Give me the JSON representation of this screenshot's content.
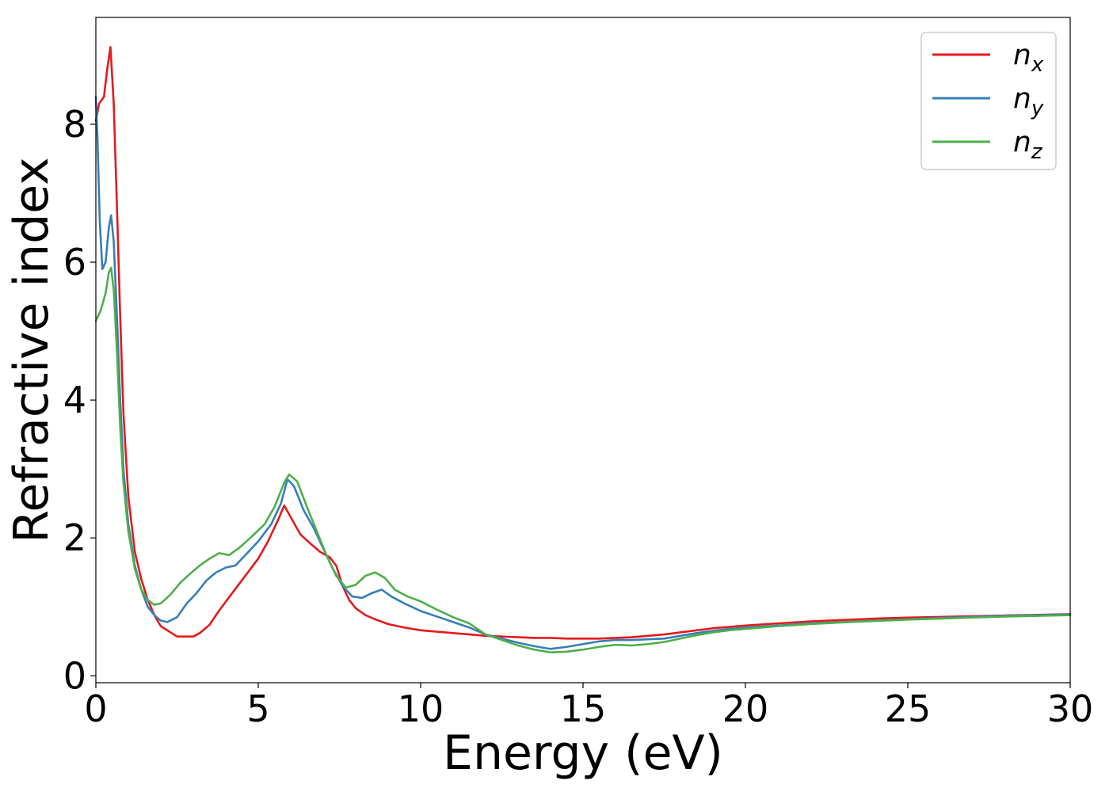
{
  "chart_data": {
    "type": "line",
    "title": "",
    "xlabel": "Energy (eV)",
    "ylabel": "Refractive index",
    "xlim": [
      0,
      30
    ],
    "ylim": [
      -0.1,
      9.55
    ],
    "xticks": [
      0,
      5,
      10,
      15,
      20,
      25,
      30
    ],
    "yticks": [
      0,
      2,
      4,
      6,
      8
    ],
    "grid": false,
    "legend_position": "top-right",
    "series": [
      {
        "name": "n_x",
        "label_main": "n",
        "label_sub": "x",
        "color": "#e41a1c",
        "points": [
          [
            0.0,
            8.05
          ],
          [
            0.1,
            8.3
          ],
          [
            0.25,
            8.4
          ],
          [
            0.35,
            8.8
          ],
          [
            0.45,
            9.12
          ],
          [
            0.55,
            8.3
          ],
          [
            0.65,
            6.8
          ],
          [
            0.75,
            5.2
          ],
          [
            0.85,
            3.8
          ],
          [
            1.0,
            2.6
          ],
          [
            1.2,
            1.8
          ],
          [
            1.4,
            1.4
          ],
          [
            1.6,
            1.1
          ],
          [
            1.8,
            0.88
          ],
          [
            2.0,
            0.72
          ],
          [
            2.3,
            0.63
          ],
          [
            2.5,
            0.57
          ],
          [
            2.8,
            0.57
          ],
          [
            3.0,
            0.57
          ],
          [
            3.2,
            0.62
          ],
          [
            3.5,
            0.74
          ],
          [
            3.8,
            0.95
          ],
          [
            4.2,
            1.2
          ],
          [
            4.6,
            1.45
          ],
          [
            5.0,
            1.7
          ],
          [
            5.3,
            1.95
          ],
          [
            5.6,
            2.25
          ],
          [
            5.8,
            2.47
          ],
          [
            6.0,
            2.3
          ],
          [
            6.3,
            2.05
          ],
          [
            6.6,
            1.92
          ],
          [
            6.9,
            1.8
          ],
          [
            7.2,
            1.72
          ],
          [
            7.4,
            1.6
          ],
          [
            7.6,
            1.3
          ],
          [
            7.8,
            1.1
          ],
          [
            8.0,
            0.98
          ],
          [
            8.3,
            0.88
          ],
          [
            8.6,
            0.82
          ],
          [
            9.0,
            0.75
          ],
          [
            9.5,
            0.7
          ],
          [
            10.0,
            0.66
          ],
          [
            10.5,
            0.64
          ],
          [
            11.0,
            0.62
          ],
          [
            11.5,
            0.6
          ],
          [
            12.0,
            0.58
          ],
          [
            12.5,
            0.57
          ],
          [
            13.0,
            0.56
          ],
          [
            13.5,
            0.55
          ],
          [
            14.0,
            0.55
          ],
          [
            14.5,
            0.54
          ],
          [
            15.0,
            0.54
          ],
          [
            15.5,
            0.54
          ],
          [
            16.0,
            0.55
          ],
          [
            16.5,
            0.56
          ],
          [
            17.0,
            0.58
          ],
          [
            17.5,
            0.6
          ],
          [
            18.0,
            0.63
          ],
          [
            18.5,
            0.66
          ],
          [
            19.0,
            0.69
          ],
          [
            19.5,
            0.71
          ],
          [
            20.0,
            0.73
          ],
          [
            21.0,
            0.76
          ],
          [
            22.0,
            0.79
          ],
          [
            23.0,
            0.81
          ],
          [
            24.0,
            0.83
          ],
          [
            25.0,
            0.845
          ],
          [
            26.0,
            0.855
          ],
          [
            27.0,
            0.865
          ],
          [
            28.0,
            0.875
          ],
          [
            29.0,
            0.885
          ],
          [
            30.0,
            0.895
          ]
        ]
      },
      {
        "name": "n_y",
        "label_main": "n",
        "label_sub": "y",
        "color": "#377eb8",
        "points": [
          [
            0.0,
            8.4
          ],
          [
            0.05,
            7.8
          ],
          [
            0.12,
            6.6
          ],
          [
            0.2,
            5.9
          ],
          [
            0.3,
            6.0
          ],
          [
            0.4,
            6.5
          ],
          [
            0.47,
            6.68
          ],
          [
            0.55,
            6.3
          ],
          [
            0.65,
            5.2
          ],
          [
            0.75,
            4.0
          ],
          [
            0.85,
            3.0
          ],
          [
            1.0,
            2.2
          ],
          [
            1.2,
            1.6
          ],
          [
            1.4,
            1.25
          ],
          [
            1.6,
            1.0
          ],
          [
            1.8,
            0.88
          ],
          [
            2.0,
            0.8
          ],
          [
            2.2,
            0.78
          ],
          [
            2.5,
            0.85
          ],
          [
            2.8,
            1.05
          ],
          [
            3.1,
            1.2
          ],
          [
            3.4,
            1.38
          ],
          [
            3.7,
            1.5
          ],
          [
            4.0,
            1.57
          ],
          [
            4.3,
            1.6
          ],
          [
            4.6,
            1.75
          ],
          [
            5.0,
            1.95
          ],
          [
            5.4,
            2.2
          ],
          [
            5.7,
            2.5
          ],
          [
            5.9,
            2.85
          ],
          [
            6.1,
            2.75
          ],
          [
            6.4,
            2.4
          ],
          [
            6.7,
            2.15
          ],
          [
            7.0,
            1.85
          ],
          [
            7.3,
            1.55
          ],
          [
            7.6,
            1.3
          ],
          [
            7.9,
            1.15
          ],
          [
            8.2,
            1.13
          ],
          [
            8.5,
            1.2
          ],
          [
            8.8,
            1.25
          ],
          [
            9.1,
            1.15
          ],
          [
            9.5,
            1.05
          ],
          [
            10.0,
            0.94
          ],
          [
            10.5,
            0.86
          ],
          [
            11.0,
            0.78
          ],
          [
            11.5,
            0.7
          ],
          [
            12.0,
            0.6
          ],
          [
            12.5,
            0.54
          ],
          [
            13.0,
            0.48
          ],
          [
            13.5,
            0.43
          ],
          [
            14.0,
            0.39
          ],
          [
            14.5,
            0.42
          ],
          [
            15.0,
            0.46
          ],
          [
            15.5,
            0.5
          ],
          [
            16.0,
            0.52
          ],
          [
            16.5,
            0.52
          ],
          [
            17.0,
            0.53
          ],
          [
            17.5,
            0.54
          ],
          [
            18.0,
            0.58
          ],
          [
            18.5,
            0.62
          ],
          [
            19.0,
            0.65
          ],
          [
            19.5,
            0.68
          ],
          [
            20.0,
            0.7
          ],
          [
            21.0,
            0.73
          ],
          [
            22.0,
            0.76
          ],
          [
            23.0,
            0.78
          ],
          [
            24.0,
            0.8
          ],
          [
            25.0,
            0.82
          ],
          [
            26.0,
            0.84
          ],
          [
            27.0,
            0.855
          ],
          [
            28.0,
            0.87
          ],
          [
            29.0,
            0.88
          ],
          [
            30.0,
            0.89
          ]
        ]
      },
      {
        "name": "n_z",
        "label_main": "n",
        "label_sub": "z",
        "color": "#4daf4a",
        "points": [
          [
            0.0,
            5.15
          ],
          [
            0.15,
            5.3
          ],
          [
            0.3,
            5.55
          ],
          [
            0.4,
            5.85
          ],
          [
            0.47,
            5.92
          ],
          [
            0.55,
            5.6
          ],
          [
            0.65,
            4.7
          ],
          [
            0.75,
            3.6
          ],
          [
            0.85,
            2.8
          ],
          [
            1.0,
            2.1
          ],
          [
            1.2,
            1.55
          ],
          [
            1.4,
            1.25
          ],
          [
            1.6,
            1.1
          ],
          [
            1.8,
            1.03
          ],
          [
            2.0,
            1.05
          ],
          [
            2.3,
            1.18
          ],
          [
            2.6,
            1.35
          ],
          [
            2.9,
            1.48
          ],
          [
            3.2,
            1.6
          ],
          [
            3.5,
            1.7
          ],
          [
            3.8,
            1.78
          ],
          [
            4.1,
            1.75
          ],
          [
            4.4,
            1.85
          ],
          [
            4.8,
            2.02
          ],
          [
            5.2,
            2.2
          ],
          [
            5.5,
            2.45
          ],
          [
            5.8,
            2.8
          ],
          [
            5.95,
            2.92
          ],
          [
            6.2,
            2.82
          ],
          [
            6.5,
            2.45
          ],
          [
            6.8,
            2.1
          ],
          [
            7.1,
            1.75
          ],
          [
            7.4,
            1.45
          ],
          [
            7.7,
            1.28
          ],
          [
            8.0,
            1.32
          ],
          [
            8.3,
            1.45
          ],
          [
            8.6,
            1.5
          ],
          [
            8.9,
            1.42
          ],
          [
            9.2,
            1.25
          ],
          [
            9.6,
            1.15
          ],
          [
            10.0,
            1.08
          ],
          [
            10.5,
            0.96
          ],
          [
            11.0,
            0.85
          ],
          [
            11.5,
            0.76
          ],
          [
            12.0,
            0.6
          ],
          [
            12.5,
            0.52
          ],
          [
            13.0,
            0.44
          ],
          [
            13.5,
            0.38
          ],
          [
            14.0,
            0.34
          ],
          [
            14.5,
            0.35
          ],
          [
            15.0,
            0.38
          ],
          [
            15.5,
            0.42
          ],
          [
            16.0,
            0.45
          ],
          [
            16.5,
            0.44
          ],
          [
            17.0,
            0.46
          ],
          [
            17.5,
            0.49
          ],
          [
            18.0,
            0.54
          ],
          [
            18.5,
            0.59
          ],
          [
            19.0,
            0.63
          ],
          [
            19.5,
            0.66
          ],
          [
            20.0,
            0.68
          ],
          [
            21.0,
            0.72
          ],
          [
            22.0,
            0.75
          ],
          [
            23.0,
            0.775
          ],
          [
            24.0,
            0.795
          ],
          [
            25.0,
            0.815
          ],
          [
            26.0,
            0.83
          ],
          [
            27.0,
            0.845
          ],
          [
            28.0,
            0.86
          ],
          [
            29.0,
            0.87
          ],
          [
            30.0,
            0.88
          ]
        ]
      }
    ]
  }
}
